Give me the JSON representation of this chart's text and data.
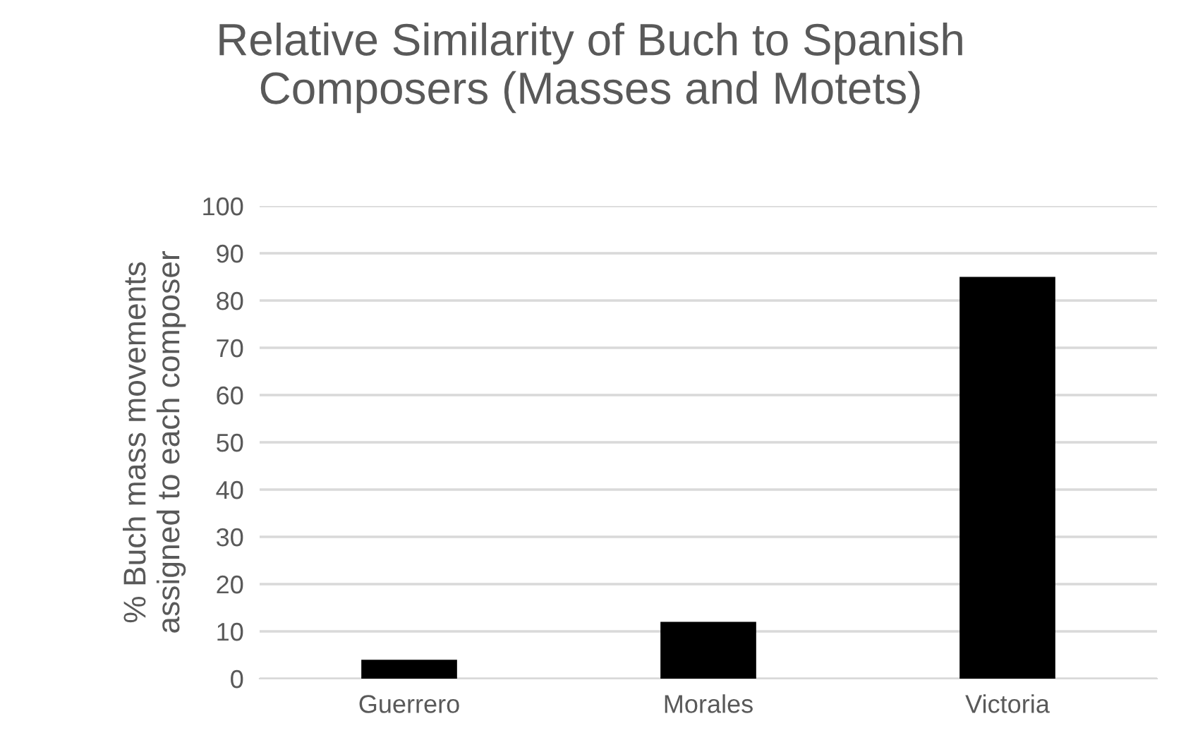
{
  "chart_data": {
    "type": "bar",
    "title": "Relative Similarity of Buch to Spanish\nComposers (Masses and Motets)",
    "ylabel": "% Buch mass movements\nassigned to each composer",
    "categories": [
      "Guerrero",
      "Morales",
      "Victoria"
    ],
    "values": [
      4,
      12,
      85
    ],
    "color": "#000000",
    "ylim": [
      0,
      100
    ],
    "yticks": [
      0,
      10,
      20,
      30,
      40,
      50,
      60,
      70,
      80,
      90,
      100
    ],
    "grid": "y"
  }
}
